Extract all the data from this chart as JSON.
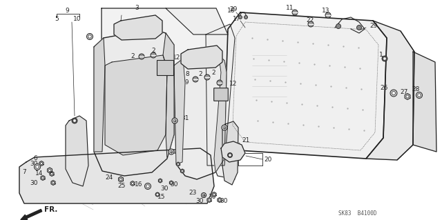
{
  "bg_color": "#ffffff",
  "line_color": "#222222",
  "diagram_code": "SK83  B4100D",
  "fig_w": 6.4,
  "fig_h": 3.19,
  "dpi": 100
}
